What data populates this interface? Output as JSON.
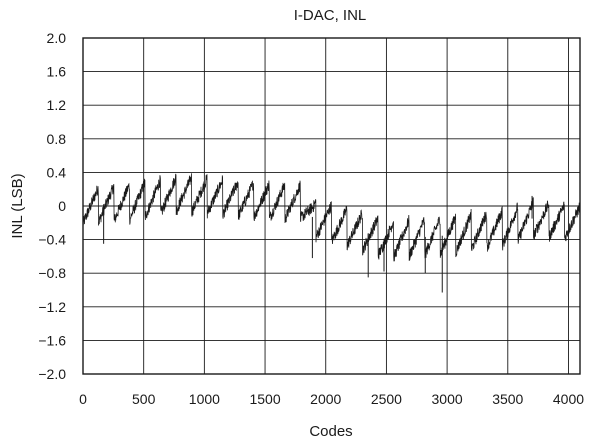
{
  "chart_data": {
    "type": "line",
    "title": "I-DAC, INL",
    "xlabel": "Codes",
    "ylabel": "INL (LSB)",
    "xlim": [
      0,
      4095
    ],
    "ylim": [
      -2.0,
      2.0
    ],
    "x_ticks": [
      0,
      500,
      1000,
      1500,
      2000,
      2500,
      3000,
      3500,
      4000
    ],
    "x_tick_labels": [
      "0",
      "500",
      "1000",
      "1500",
      "2000",
      "2500",
      "3000",
      "3500",
      "4000"
    ],
    "y_ticks": [
      2.0,
      1.6,
      1.2,
      0.8,
      0.4,
      0,
      -0.4,
      -0.8,
      -1.2,
      -1.6,
      -2.0
    ],
    "y_tick_labels": [
      "2.0",
      "1.6",
      "1.2",
      "0.8",
      "0.4",
      "0",
      "−0.4",
      "−0.8",
      "−1.2",
      "−1.6",
      "−2.0"
    ],
    "grid": true,
    "line_color": "#1a1a1a",
    "sawtooth_period_codes": 128,
    "trend": [
      {
        "x": 0,
        "y": 0.0
      },
      {
        "x": 400,
        "y": 0.05
      },
      {
        "x": 800,
        "y": 0.15
      },
      {
        "x": 1200,
        "y": 0.1
      },
      {
        "x": 1600,
        "y": 0.05
      },
      {
        "x": 1800,
        "y": 0.05
      },
      {
        "x": 1900,
        "y": -0.15
      },
      {
        "x": 2300,
        "y": -0.3
      },
      {
        "x": 2500,
        "y": -0.4
      },
      {
        "x": 3000,
        "y": -0.35
      },
      {
        "x": 3500,
        "y": -0.25
      },
      {
        "x": 3700,
        "y": -0.15
      },
      {
        "x": 4095,
        "y": -0.2
      }
    ],
    "sawtooth_amplitude": [
      {
        "x": 0,
        "a": 0.42
      },
      {
        "x": 1800,
        "a": 0.42
      },
      {
        "x": 2300,
        "a": 0.45
      },
      {
        "x": 4095,
        "a": 0.4
      }
    ],
    "spikes": [
      {
        "x": 170,
        "y": -0.45
      },
      {
        "x": 1890,
        "y": -0.62
      },
      {
        "x": 2350,
        "y": -0.85
      },
      {
        "x": 2480,
        "y": -0.78
      },
      {
        "x": 2820,
        "y": -0.8
      },
      {
        "x": 2960,
        "y": -1.03
      },
      {
        "x": 3700,
        "y": 0.12
      }
    ]
  }
}
